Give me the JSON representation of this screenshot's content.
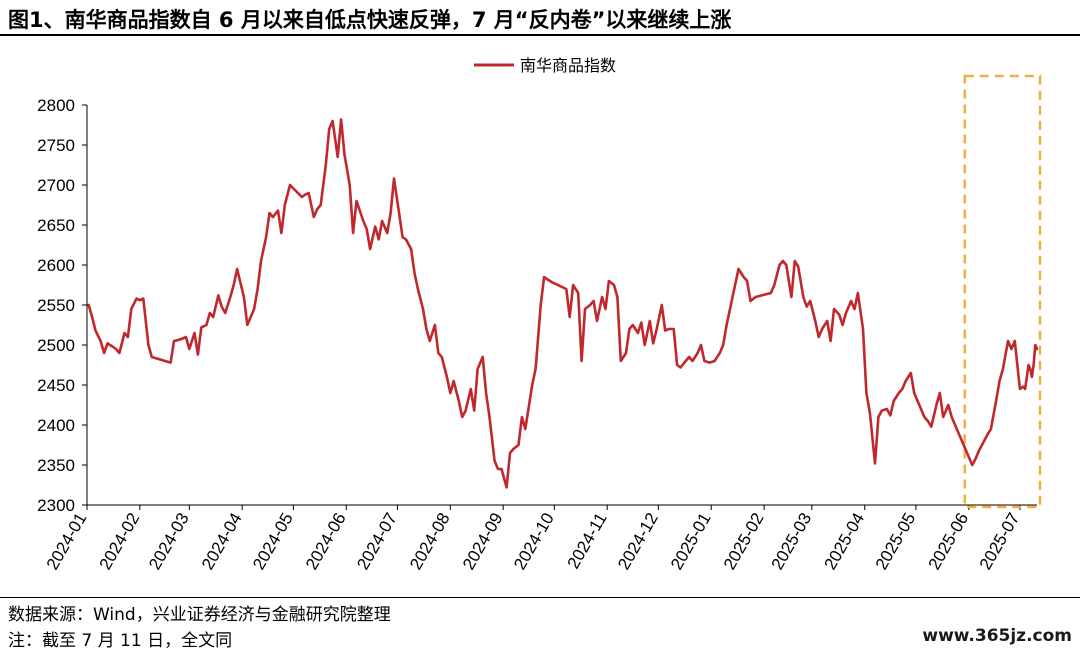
{
  "header": {
    "title": "图1、南华商品指数自 6 月以来自低点快速反弹，7 月“反内卷”以来继续上涨"
  },
  "footer": {
    "source": "数据来源：Wind，兴业证券经济与金融研究院整理",
    "note": "注：截至 7 月 11 日，全文同",
    "watermark": "www.365jz.com"
  },
  "colors": {
    "line": "#c0282d",
    "highlight_box": "#f0b040",
    "axis": "#000000"
  },
  "chart_data": {
    "type": "line",
    "title": "",
    "xlabel": "",
    "ylabel": "",
    "ylim": [
      2300,
      2800
    ],
    "yticks": [
      2300,
      2350,
      2400,
      2450,
      2500,
      2550,
      2600,
      2650,
      2700,
      2750,
      2800
    ],
    "xlim": [
      "2024-01-01",
      "2025-07-11"
    ],
    "xticks": [
      "2024-01",
      "2024-02",
      "2024-03",
      "2024-04",
      "2024-05",
      "2024-06",
      "2024-07",
      "2024-08",
      "2024-09",
      "2024-10",
      "2024-11",
      "2024-12",
      "2025-01",
      "2025-02",
      "2025-03",
      "2025-04",
      "2025-05",
      "2025-06",
      "2025-07"
    ],
    "legend": {
      "position": "top-center",
      "entries": [
        "南华商品指数"
      ]
    },
    "highlight": {
      "x_start": "2025-06-01",
      "x_end": "2025-07-11",
      "style": "dashed-box"
    },
    "grid": false,
    "series": [
      {
        "name": "南华商品指数",
        "points": [
          [
            "2024-01-02",
            2550
          ],
          [
            "2024-01-04",
            2535
          ],
          [
            "2024-01-06",
            2518
          ],
          [
            "2024-01-09",
            2505
          ],
          [
            "2024-01-11",
            2490
          ],
          [
            "2024-01-13",
            2502
          ],
          [
            "2024-01-16",
            2498
          ],
          [
            "2024-01-18",
            2495
          ],
          [
            "2024-01-20",
            2490
          ],
          [
            "2024-01-23",
            2515
          ],
          [
            "2024-01-25",
            2510
          ],
          [
            "2024-01-27",
            2545
          ],
          [
            "2024-01-30",
            2558
          ],
          [
            "2024-02-01",
            2556
          ],
          [
            "2024-02-03",
            2558
          ],
          [
            "2024-02-06",
            2500
          ],
          [
            "2024-02-08",
            2485
          ],
          [
            "2024-02-19",
            2478
          ],
          [
            "2024-02-21",
            2505
          ],
          [
            "2024-02-23",
            2506
          ],
          [
            "2024-02-26",
            2508
          ],
          [
            "2024-02-28",
            2510
          ],
          [
            "2024-03-01",
            2495
          ],
          [
            "2024-03-04",
            2515
          ],
          [
            "2024-03-06",
            2488
          ],
          [
            "2024-03-08",
            2522
          ],
          [
            "2024-03-11",
            2525
          ],
          [
            "2024-03-13",
            2540
          ],
          [
            "2024-03-15",
            2535
          ],
          [
            "2024-03-18",
            2562
          ],
          [
            "2024-03-20",
            2548
          ],
          [
            "2024-03-22",
            2540
          ],
          [
            "2024-03-25",
            2560
          ],
          [
            "2024-03-27",
            2575
          ],
          [
            "2024-03-29",
            2595
          ],
          [
            "2024-04-02",
            2560
          ],
          [
            "2024-04-04",
            2525
          ],
          [
            "2024-04-08",
            2545
          ],
          [
            "2024-04-10",
            2570
          ],
          [
            "2024-04-12",
            2605
          ],
          [
            "2024-04-15",
            2635
          ],
          [
            "2024-04-17",
            2665
          ],
          [
            "2024-04-19",
            2660
          ],
          [
            "2024-04-22",
            2668
          ],
          [
            "2024-04-24",
            2640
          ],
          [
            "2024-04-26",
            2675
          ],
          [
            "2024-04-29",
            2700
          ],
          [
            "2024-05-06",
            2685
          ],
          [
            "2024-05-08",
            2688
          ],
          [
            "2024-05-10",
            2690
          ],
          [
            "2024-05-13",
            2660
          ],
          [
            "2024-05-15",
            2670
          ],
          [
            "2024-05-17",
            2675
          ],
          [
            "2024-05-20",
            2725
          ],
          [
            "2024-05-22",
            2770
          ],
          [
            "2024-05-24",
            2780
          ],
          [
            "2024-05-27",
            2735
          ],
          [
            "2024-05-29",
            2782
          ],
          [
            "2024-05-31",
            2738
          ],
          [
            "2024-06-03",
            2700
          ],
          [
            "2024-06-05",
            2640
          ],
          [
            "2024-06-07",
            2680
          ],
          [
            "2024-06-11",
            2655
          ],
          [
            "2024-06-13",
            2645
          ],
          [
            "2024-06-15",
            2620
          ],
          [
            "2024-06-18",
            2648
          ],
          [
            "2024-06-20",
            2632
          ],
          [
            "2024-06-22",
            2655
          ],
          [
            "2024-06-25",
            2640
          ],
          [
            "2024-06-27",
            2665
          ],
          [
            "2024-06-29",
            2708
          ],
          [
            "2024-07-02",
            2665
          ],
          [
            "2024-07-04",
            2635
          ],
          [
            "2024-07-06",
            2632
          ],
          [
            "2024-07-09",
            2620
          ],
          [
            "2024-07-11",
            2590
          ],
          [
            "2024-07-13",
            2570
          ],
          [
            "2024-07-16",
            2545
          ],
          [
            "2024-07-18",
            2520
          ],
          [
            "2024-07-20",
            2505
          ],
          [
            "2024-07-23",
            2525
          ],
          [
            "2024-07-25",
            2490
          ],
          [
            "2024-07-27",
            2485
          ],
          [
            "2024-07-30",
            2460
          ],
          [
            "2024-08-01",
            2440
          ],
          [
            "2024-08-03",
            2455
          ],
          [
            "2024-08-06",
            2430
          ],
          [
            "2024-08-08",
            2410
          ],
          [
            "2024-08-10",
            2418
          ],
          [
            "2024-08-13",
            2445
          ],
          [
            "2024-08-15",
            2418
          ],
          [
            "2024-08-17",
            2470
          ],
          [
            "2024-08-20",
            2485
          ],
          [
            "2024-08-22",
            2440
          ],
          [
            "2024-08-24",
            2410
          ],
          [
            "2024-08-27",
            2355
          ],
          [
            "2024-08-29",
            2345
          ],
          [
            "2024-08-31",
            2345
          ],
          [
            "2024-09-03",
            2322
          ],
          [
            "2024-09-05",
            2365
          ],
          [
            "2024-09-07",
            2370
          ],
          [
            "2024-09-10",
            2375
          ],
          [
            "2024-09-12",
            2410
          ],
          [
            "2024-09-14",
            2395
          ],
          [
            "2024-09-18",
            2450
          ],
          [
            "2024-09-20",
            2470
          ],
          [
            "2024-09-23",
            2550
          ],
          [
            "2024-09-25",
            2585
          ],
          [
            "2024-09-27",
            2582
          ],
          [
            "2024-09-30",
            2578
          ],
          [
            "2024-10-08",
            2570
          ],
          [
            "2024-10-10",
            2535
          ],
          [
            "2024-10-12",
            2575
          ],
          [
            "2024-10-15",
            2565
          ],
          [
            "2024-10-17",
            2480
          ],
          [
            "2024-10-19",
            2545
          ],
          [
            "2024-10-22",
            2550
          ],
          [
            "2024-10-24",
            2555
          ],
          [
            "2024-10-26",
            2530
          ],
          [
            "2024-10-29",
            2560
          ],
          [
            "2024-10-31",
            2545
          ],
          [
            "2024-11-02",
            2580
          ],
          [
            "2024-11-05",
            2575
          ],
          [
            "2024-11-07",
            2560
          ],
          [
            "2024-11-09",
            2480
          ],
          [
            "2024-11-12",
            2490
          ],
          [
            "2024-11-14",
            2520
          ],
          [
            "2024-11-16",
            2525
          ],
          [
            "2024-11-19",
            2515
          ],
          [
            "2024-11-21",
            2528
          ],
          [
            "2024-11-23",
            2500
          ],
          [
            "2024-11-26",
            2530
          ],
          [
            "2024-11-28",
            2502
          ],
          [
            "2024-11-30",
            2520
          ],
          [
            "2024-12-03",
            2550
          ],
          [
            "2024-12-05",
            2518
          ],
          [
            "2024-12-07",
            2520
          ],
          [
            "2024-12-10",
            2520
          ],
          [
            "2024-12-12",
            2475
          ],
          [
            "2024-12-14",
            2472
          ],
          [
            "2024-12-17",
            2480
          ],
          [
            "2024-12-19",
            2485
          ],
          [
            "2024-12-21",
            2480
          ],
          [
            "2024-12-24",
            2490
          ],
          [
            "2024-12-26",
            2500
          ],
          [
            "2024-12-28",
            2480
          ],
          [
            "2024-12-31",
            2478
          ],
          [
            "2025-01-03",
            2480
          ],
          [
            "2025-01-06",
            2490
          ],
          [
            "2025-01-08",
            2500
          ],
          [
            "2025-01-10",
            2525
          ],
          [
            "2025-01-13",
            2555
          ],
          [
            "2025-01-15",
            2575
          ],
          [
            "2025-01-17",
            2595
          ],
          [
            "2025-01-20",
            2585
          ],
          [
            "2025-01-22",
            2580
          ],
          [
            "2025-01-24",
            2555
          ],
          [
            "2025-01-27",
            2560
          ],
          [
            "2025-02-05",
            2565
          ],
          [
            "2025-02-07",
            2575
          ],
          [
            "2025-02-10",
            2600
          ],
          [
            "2025-02-12",
            2605
          ],
          [
            "2025-02-14",
            2600
          ],
          [
            "2025-02-17",
            2560
          ],
          [
            "2025-02-19",
            2605
          ],
          [
            "2025-02-21",
            2598
          ],
          [
            "2025-02-24",
            2560
          ],
          [
            "2025-02-26",
            2548
          ],
          [
            "2025-02-28",
            2555
          ],
          [
            "2025-03-03",
            2530
          ],
          [
            "2025-03-05",
            2510
          ],
          [
            "2025-03-07",
            2520
          ],
          [
            "2025-03-10",
            2530
          ],
          [
            "2025-03-12",
            2505
          ],
          [
            "2025-03-14",
            2545
          ],
          [
            "2025-03-17",
            2538
          ],
          [
            "2025-03-19",
            2525
          ],
          [
            "2025-03-21",
            2540
          ],
          [
            "2025-03-24",
            2555
          ],
          [
            "2025-03-26",
            2545
          ],
          [
            "2025-03-28",
            2565
          ],
          [
            "2025-03-31",
            2520
          ],
          [
            "2025-04-02",
            2440
          ],
          [
            "2025-04-04",
            2415
          ],
          [
            "2025-04-07",
            2352
          ],
          [
            "2025-04-09",
            2410
          ],
          [
            "2025-04-11",
            2418
          ],
          [
            "2025-04-14",
            2420
          ],
          [
            "2025-04-16",
            2412
          ],
          [
            "2025-04-18",
            2430
          ],
          [
            "2025-04-21",
            2440
          ],
          [
            "2025-04-23",
            2445
          ],
          [
            "2025-04-25",
            2455
          ],
          [
            "2025-04-28",
            2465
          ],
          [
            "2025-04-30",
            2440
          ],
          [
            "2025-05-06",
            2410
          ],
          [
            "2025-05-08",
            2405
          ],
          [
            "2025-05-10",
            2398
          ],
          [
            "2025-05-13",
            2425
          ],
          [
            "2025-05-15",
            2440
          ],
          [
            "2025-05-17",
            2410
          ],
          [
            "2025-05-20",
            2425
          ],
          [
            "2025-05-22",
            2410
          ],
          [
            "2025-05-24",
            2400
          ],
          [
            "2025-05-27",
            2385
          ],
          [
            "2025-05-29",
            2375
          ],
          [
            "2025-06-03",
            2350
          ],
          [
            "2025-06-05",
            2358
          ],
          [
            "2025-06-07",
            2368
          ],
          [
            "2025-06-10",
            2380
          ],
          [
            "2025-06-12",
            2388
          ],
          [
            "2025-06-14",
            2395
          ],
          [
            "2025-06-17",
            2430
          ],
          [
            "2025-06-19",
            2455
          ],
          [
            "2025-06-21",
            2470
          ],
          [
            "2025-06-24",
            2505
          ],
          [
            "2025-06-26",
            2495
          ],
          [
            "2025-06-28",
            2505
          ],
          [
            "2025-07-01",
            2445
          ],
          [
            "2025-07-03",
            2448
          ],
          [
            "2025-07-04",
            2445
          ],
          [
            "2025-07-06",
            2475
          ],
          [
            "2025-07-07",
            2470
          ],
          [
            "2025-07-08",
            2460
          ],
          [
            "2025-07-09",
            2475
          ],
          [
            "2025-07-10",
            2500
          ],
          [
            "2025-07-11",
            2495
          ]
        ]
      }
    ]
  }
}
